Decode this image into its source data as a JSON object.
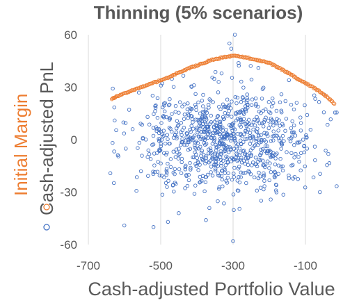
{
  "chart_data": {
    "type": "scatter",
    "title": "Thinning (5% scenarios)",
    "xlabel": "Cash-adjusted Portfolio Value",
    "ylabels": [
      "Initial Margin",
      "Cash-adjusted PnL"
    ],
    "xlim": [
      -700,
      0
    ],
    "ylim": [
      -60,
      60
    ],
    "xticks": [
      -700,
      -500,
      -300,
      -100
    ],
    "yticks": [
      -60,
      -30,
      0,
      30,
      60
    ],
    "grid": {
      "vertical": true,
      "horizontal": false
    },
    "legend": "left-vertical",
    "colors": {
      "initial_margin": "#ed7d31",
      "pnl": "#4472c4",
      "text": "#595959",
      "grid": "#d9d9d9"
    },
    "series": [
      {
        "name": "Initial Margin",
        "color": "#ed7d31",
        "curve_x": [
          -635,
          -620,
          -600,
          -580,
          -560,
          -540,
          -520,
          -500,
          -480,
          -460,
          -440,
          -420,
          -400,
          -380,
          -360,
          -340,
          -320,
          -300,
          -280,
          -260,
          -240,
          -220,
          -200,
          -180,
          -160,
          -140,
          -120,
          -100,
          -80,
          -60,
          -40,
          -20
        ],
        "curve_y": [
          23,
          25,
          26.5,
          28,
          29.5,
          31,
          32.5,
          34,
          35.5,
          37.5,
          39,
          41,
          42.5,
          44,
          45.5,
          46.5,
          47.3,
          47.8,
          47.6,
          46.8,
          45.8,
          44.9,
          43.8,
          41.8,
          39.5,
          37.3,
          34.5,
          32.5,
          30,
          27.5,
          24.5,
          20.5
        ]
      },
      {
        "name": "Cash-adjusted PnL",
        "color": "#4472c4",
        "cloud": {
          "count": 900,
          "x_mean": -330,
          "x_sd": 125,
          "y_mean": 0,
          "y_sd": 15
        },
        "outliers_x": [
          -520,
          -300,
          -295,
          -310,
          -305,
          -375,
          -60,
          -230,
          -340
        ],
        "outliers_y": [
          -50,
          -58,
          60,
          55,
          52,
          -46,
          -30,
          41,
          33
        ]
      }
    ]
  }
}
